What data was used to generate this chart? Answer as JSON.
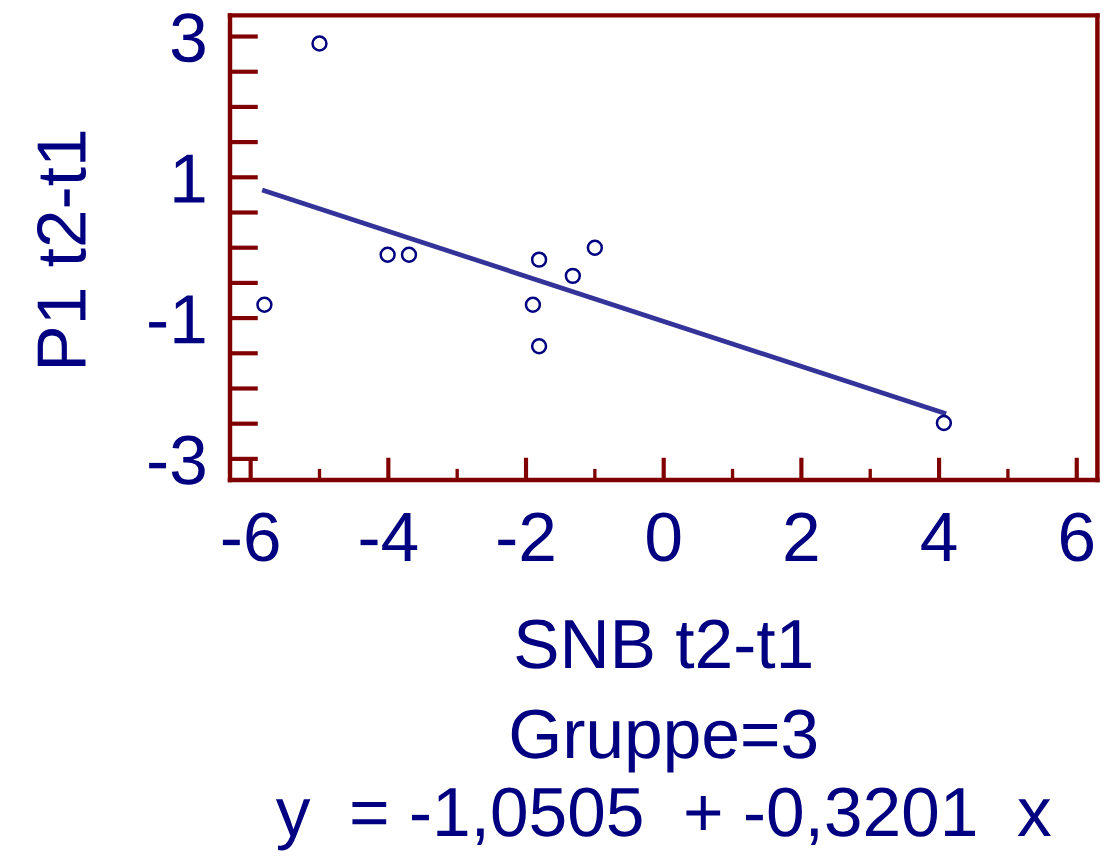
{
  "chart_data": {
    "type": "scatter",
    "xlabel": "SNB t2-t1",
    "ylabel": "P1 t2-t1",
    "annotations": [
      "Gruppe=3",
      "y  = -1,0505  + -0,3201  x"
    ],
    "xlim": [
      -6.3,
      6.3
    ],
    "ylim": [
      -3.3,
      3.3
    ],
    "xticks": [
      -6,
      {
        "value": -5,
        "label": null
      },
      -4,
      {
        "value": -3,
        "label": null
      },
      -2,
      {
        "value": -1,
        "label": null
      },
      0,
      {
        "value": 1,
        "label": null
      },
      2,
      {
        "value": 3,
        "label": null
      },
      4,
      {
        "value": 5,
        "label": null
      },
      6
    ],
    "yticks": [
      -3,
      {
        "value": -2.5,
        "label": null
      },
      {
        "value": -2,
        "label": null
      },
      {
        "value": -1.5,
        "label": null
      },
      -1,
      {
        "value": -0.5,
        "label": null
      },
      {
        "value": 0,
        "label": null
      },
      {
        "value": 0.5,
        "label": null
      },
      1,
      {
        "value": 1.5,
        "label": null
      },
      {
        "value": 2,
        "label": null
      },
      {
        "value": 2.5,
        "label": null
      },
      3
    ],
    "series": [
      {
        "color": "#000080",
        "marker": "circle",
        "x": [
          -5.0,
          -5.8,
          -4.01,
          -3.7,
          -1.81,
          -1.9,
          -1.81,
          -1.32,
          -1.0,
          4.07
        ],
        "values": [
          2.9,
          -0.81,
          -0.1,
          -0.1,
          -0.17,
          -0.81,
          -1.4,
          -0.4,
          0.0,
          -2.49
        ]
      },
      {
        "type": "line",
        "color": "#333399",
        "line_style": "solid",
        "x": [
          -5.8,
          4.07
        ],
        "values": [
          0.81,
          -2.35
        ]
      }
    ]
  }
}
